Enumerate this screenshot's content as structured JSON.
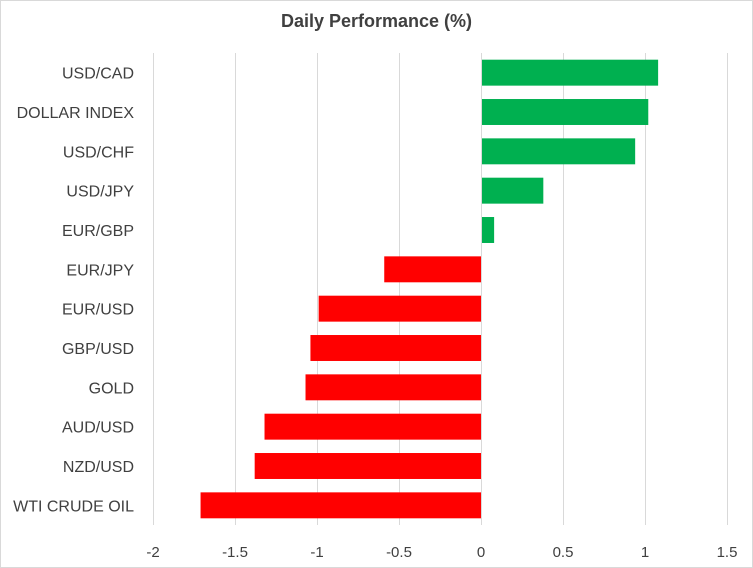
{
  "chart_data": {
    "type": "bar",
    "orientation": "horizontal",
    "title": "Daily Performance  (%)",
    "xlabel": "",
    "ylabel": "",
    "categories": [
      "USD/CAD",
      "DOLLAR INDEX",
      "USD/CHF",
      "USD/JPY",
      "EUR/GBP",
      "EUR/JPY",
      "EUR/USD",
      "GBP/USD",
      "GOLD",
      "AUD/USD",
      "NZD/USD",
      "WTI CRUDE OIL"
    ],
    "values": [
      1.08,
      1.02,
      0.94,
      0.38,
      0.08,
      -0.59,
      -0.99,
      -1.04,
      -1.07,
      -1.32,
      -1.38,
      -1.71
    ],
    "xlim": [
      -2,
      1.5
    ],
    "xticks": [
      -2,
      -1.5,
      -1,
      -0.5,
      0,
      0.5,
      1,
      1.5
    ],
    "xtick_labels": [
      "-2",
      "-1.5",
      "-1",
      "-0.5",
      "0",
      "0.5",
      "1",
      "1.5"
    ],
    "grid": "vertical",
    "legend": "none",
    "colors": {
      "positive": "#00b050",
      "negative": "#ff0000",
      "gridline": "#d9d9d9",
      "text": "#404040"
    }
  }
}
